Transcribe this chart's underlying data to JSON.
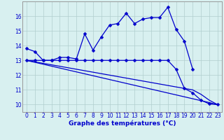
{
  "xlabel": "Graphe des températures (°C)",
  "hours": [
    0,
    1,
    2,
    3,
    4,
    5,
    6,
    7,
    8,
    9,
    10,
    11,
    12,
    13,
    14,
    15,
    16,
    17,
    18,
    19,
    20,
    21,
    22,
    23
  ],
  "line1": [
    13.8,
    13.6,
    13.0,
    13.0,
    13.2,
    13.2,
    13.1,
    14.8,
    13.7,
    14.6,
    15.4,
    15.5,
    16.2,
    15.5,
    15.8,
    15.9,
    15.9,
    16.6,
    15.1,
    14.3,
    12.4,
    null,
    null,
    null
  ],
  "line2": [
    13.0,
    13.0,
    13.0,
    13.0,
    13.0,
    13.0,
    13.0,
    13.0,
    13.0,
    13.0,
    13.0,
    13.0,
    13.0,
    13.0,
    13.0,
    13.0,
    13.0,
    13.0,
    12.4,
    11.1,
    10.8,
    10.3,
    10.05,
    10.0
  ],
  "line3": [
    13.0,
    12.87,
    12.74,
    12.61,
    12.48,
    12.35,
    12.22,
    12.09,
    11.96,
    11.83,
    11.7,
    11.57,
    11.44,
    11.31,
    11.18,
    11.05,
    10.92,
    10.79,
    10.66,
    10.53,
    10.4,
    10.27,
    10.14,
    10.0
  ],
  "line4": [
    13.0,
    12.9,
    12.8,
    12.7,
    12.6,
    12.5,
    12.4,
    12.3,
    12.2,
    12.1,
    12.0,
    11.9,
    11.8,
    11.7,
    11.6,
    11.5,
    11.4,
    11.3,
    11.2,
    11.1,
    11.0,
    10.7,
    10.3,
    10.0
  ],
  "line_color": "#0000cc",
  "bg_color": "#d8f0f0",
  "grid_color": "#b0cece",
  "ylim": [
    9.5,
    17.0
  ],
  "yticks": [
    10,
    11,
    12,
    13,
    14,
    15,
    16
  ],
  "xlim": [
    -0.5,
    23.5
  ],
  "tick_fontsize": 5.5,
  "label_fontsize": 6.5
}
